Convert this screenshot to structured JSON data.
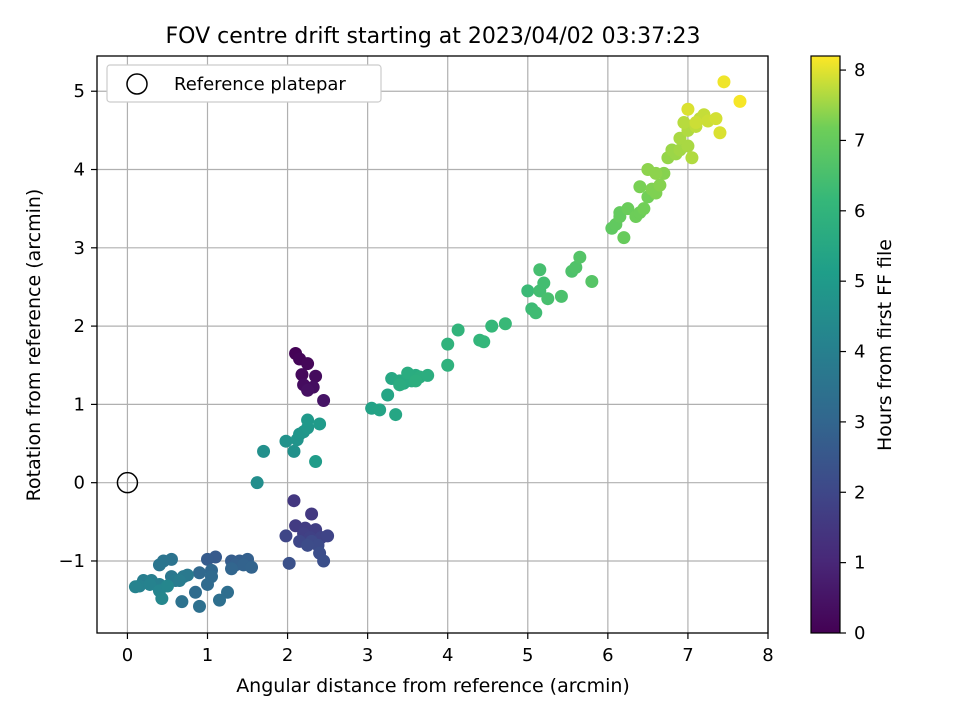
{
  "chart_data": {
    "type": "scatter",
    "title": "FOV centre drift starting at 2023/04/02 03:37:23",
    "xlabel": "Angular distance from reference (arcmin)",
    "ylabel": "Rotation from reference (arcmin)",
    "xlim": [
      -0.38,
      8.0
    ],
    "ylim": [
      -1.92,
      5.45
    ],
    "xticks": [
      0,
      1,
      2,
      3,
      4,
      5,
      6,
      7,
      8
    ],
    "yticks": [
      -1,
      0,
      1,
      2,
      3,
      4,
      5
    ],
    "grid": true,
    "legend": {
      "placement": "top-left",
      "entries": [
        "Reference platepar"
      ]
    },
    "reference_point": {
      "name": "Reference platepar",
      "x": 0,
      "y": 0
    },
    "colorbar": {
      "label": "Hours from first FF file",
      "min": 0,
      "max": 8.2,
      "ticks": [
        0,
        1,
        2,
        3,
        4,
        5,
        6,
        7,
        8
      ],
      "colormap": "viridis"
    },
    "points": [
      [
        2.1,
        1.65,
        0.05
      ],
      [
        2.15,
        1.58,
        0.1
      ],
      [
        2.25,
        1.52,
        0.15
      ],
      [
        2.18,
        1.38,
        0.2
      ],
      [
        2.35,
        1.36,
        0.25
      ],
      [
        2.2,
        1.25,
        0.3
      ],
      [
        2.32,
        1.22,
        0.35
      ],
      [
        2.25,
        1.18,
        0.4
      ],
      [
        2.45,
        1.05,
        0.5
      ],
      [
        2.08,
        -0.23,
        1.5
      ],
      [
        2.3,
        -0.4,
        1.55
      ],
      [
        2.1,
        -0.55,
        1.6
      ],
      [
        2.22,
        -0.58,
        1.65
      ],
      [
        2.35,
        -0.6,
        1.7
      ],
      [
        2.2,
        -0.65,
        1.75
      ],
      [
        2.28,
        -0.7,
        1.8
      ],
      [
        2.42,
        -0.7,
        1.85
      ],
      [
        2.5,
        -0.68,
        1.9
      ],
      [
        1.98,
        -0.68,
        1.95
      ],
      [
        2.15,
        -0.75,
        2.0
      ],
      [
        2.3,
        -0.75,
        2.05
      ],
      [
        2.38,
        -0.8,
        2.1
      ],
      [
        2.25,
        -0.8,
        2.15
      ],
      [
        2.4,
        -0.9,
        2.2
      ],
      [
        2.45,
        -1.0,
        2.25
      ],
      [
        2.02,
        -1.03,
        2.3
      ],
      [
        1.1,
        -0.95,
        2.6
      ],
      [
        1.0,
        -0.98,
        2.65
      ],
      [
        1.3,
        -1.0,
        2.7
      ],
      [
        1.4,
        -1.0,
        2.75
      ],
      [
        1.5,
        -0.98,
        2.8
      ],
      [
        1.35,
        -1.05,
        2.85
      ],
      [
        1.45,
        -1.05,
        2.9
      ],
      [
        1.55,
        -1.08,
        2.95
      ],
      [
        1.3,
        -1.1,
        3.0
      ],
      [
        1.05,
        -1.12,
        3.05
      ],
      [
        0.9,
        -1.15,
        3.1
      ],
      [
        1.05,
        -1.2,
        3.15
      ],
      [
        1.0,
        -1.3,
        3.2
      ],
      [
        0.85,
        -1.4,
        3.25
      ],
      [
        1.25,
        -1.4,
        3.3
      ],
      [
        1.15,
        -1.5,
        3.35
      ],
      [
        0.9,
        -1.58,
        3.4
      ],
      [
        0.68,
        -1.52,
        3.45
      ],
      [
        0.55,
        -0.98,
        3.5
      ],
      [
        0.45,
        -1.0,
        3.55
      ],
      [
        0.4,
        -1.05,
        3.6
      ],
      [
        0.55,
        -1.2,
        3.65
      ],
      [
        0.7,
        -1.2,
        3.7
      ],
      [
        0.75,
        -1.18,
        3.75
      ],
      [
        0.6,
        -1.25,
        3.8
      ],
      [
        0.65,
        -1.25,
        3.85
      ],
      [
        0.2,
        -1.25,
        3.9
      ],
      [
        0.3,
        -1.25,
        3.95
      ],
      [
        0.4,
        -1.3,
        4.0
      ],
      [
        0.15,
        -1.32,
        4.05
      ],
      [
        0.28,
        -1.3,
        4.1
      ],
      [
        0.1,
        -1.33,
        4.15
      ],
      [
        0.4,
        -1.38,
        4.2
      ],
      [
        0.5,
        -1.32,
        4.25
      ],
      [
        0.43,
        -1.48,
        4.3
      ],
      [
        1.62,
        0.0,
        4.55
      ],
      [
        1.7,
        0.4,
        4.6
      ],
      [
        2.08,
        0.4,
        4.65
      ],
      [
        1.98,
        0.53,
        4.7
      ],
      [
        2.12,
        0.55,
        4.75
      ],
      [
        2.15,
        0.62,
        4.8
      ],
      [
        2.2,
        0.65,
        4.85
      ],
      [
        2.25,
        0.7,
        4.9
      ],
      [
        2.25,
        0.8,
        4.95
      ],
      [
        2.4,
        0.75,
        5.0
      ],
      [
        2.35,
        0.27,
        5.05
      ],
      [
        3.05,
        0.95,
        5.3
      ],
      [
        3.15,
        0.93,
        5.35
      ],
      [
        3.25,
        1.12,
        5.4
      ],
      [
        3.35,
        0.87,
        5.45
      ],
      [
        3.3,
        1.33,
        5.5
      ],
      [
        3.4,
        1.3,
        5.55
      ],
      [
        3.45,
        1.27,
        5.6
      ],
      [
        3.5,
        1.35,
        5.6
      ],
      [
        3.55,
        1.3,
        5.65
      ],
      [
        3.6,
        1.37,
        5.65
      ],
      [
        3.4,
        1.25,
        5.7
      ],
      [
        3.5,
        1.4,
        5.7
      ],
      [
        3.65,
        1.35,
        5.75
      ],
      [
        3.75,
        1.37,
        5.75
      ],
      [
        3.6,
        1.3,
        5.8
      ],
      [
        4.0,
        1.5,
        5.9
      ],
      [
        4.0,
        1.77,
        5.95
      ],
      [
        4.13,
        1.95,
        6.0
      ],
      [
        4.4,
        1.82,
        6.05
      ],
      [
        4.45,
        1.8,
        6.1
      ],
      [
        4.55,
        2.0,
        6.15
      ],
      [
        4.72,
        2.03,
        6.2
      ],
      [
        5.0,
        2.45,
        6.25
      ],
      [
        5.05,
        2.22,
        6.3
      ],
      [
        5.1,
        2.17,
        6.35
      ],
      [
        5.15,
        2.45,
        6.4
      ],
      [
        5.2,
        2.55,
        6.4
      ],
      [
        5.15,
        2.72,
        6.45
      ],
      [
        5.25,
        2.35,
        6.5
      ],
      [
        5.42,
        2.38,
        6.55
      ],
      [
        5.55,
        2.7,
        6.6
      ],
      [
        5.6,
        2.75,
        6.65
      ],
      [
        5.65,
        2.88,
        6.7
      ],
      [
        5.8,
        2.57,
        6.75
      ],
      [
        6.05,
        3.25,
        6.9
      ],
      [
        6.1,
        3.3,
        6.95
      ],
      [
        6.15,
        3.4,
        7.0
      ],
      [
        6.15,
        3.45,
        7.0
      ],
      [
        6.2,
        3.13,
        7.05
      ],
      [
        6.25,
        3.5,
        7.1
      ],
      [
        6.35,
        3.4,
        7.15
      ],
      [
        6.4,
        3.45,
        7.15
      ],
      [
        6.45,
        3.5,
        7.2
      ],
      [
        6.5,
        3.65,
        7.2
      ],
      [
        6.4,
        3.78,
        7.25
      ],
      [
        6.55,
        3.75,
        7.3
      ],
      [
        6.6,
        3.7,
        7.3
      ],
      [
        6.65,
        3.8,
        7.35
      ],
      [
        6.7,
        3.95,
        7.35
      ],
      [
        6.5,
        4.0,
        7.4
      ],
      [
        6.6,
        3.95,
        7.4
      ],
      [
        6.75,
        4.15,
        7.45
      ],
      [
        6.85,
        4.2,
        7.5
      ],
      [
        6.8,
        4.25,
        7.5
      ],
      [
        6.9,
        4.25,
        7.55
      ],
      [
        6.9,
        4.4,
        7.6
      ],
      [
        7.0,
        4.3,
        7.6
      ],
      [
        7.05,
        4.15,
        7.65
      ],
      [
        7.0,
        4.5,
        7.65
      ],
      [
        6.95,
        4.6,
        7.7
      ],
      [
        7.1,
        4.55,
        7.75
      ],
      [
        7.15,
        4.65,
        7.75
      ],
      [
        7.2,
        4.7,
        7.8
      ],
      [
        7.1,
        4.6,
        7.85
      ],
      [
        7.25,
        4.62,
        7.85
      ],
      [
        7.35,
        4.65,
        7.9
      ],
      [
        7.4,
        4.47,
        7.95
      ],
      [
        7.0,
        4.77,
        7.95
      ],
      [
        7.45,
        5.12,
        8.1
      ],
      [
        7.65,
        4.87,
        8.15
      ]
    ]
  }
}
